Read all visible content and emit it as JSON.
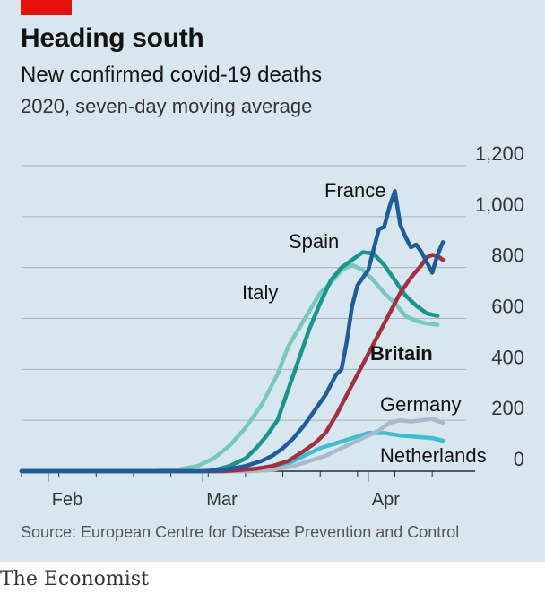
{
  "brand": "The Economist",
  "colors": {
    "panel": "#d7e6ef",
    "brand_red": "#e3120b",
    "France": "#1f5c99",
    "Spain": "#1b9490",
    "Italy": "#76c8c1",
    "Britain": "#a4303f",
    "Germany": "#a9b9c9",
    "Netherlands": "#3fbdd0",
    "grid": "#a9b3bb"
  },
  "chart_data": {
    "type": "line",
    "title": "Heading south",
    "subtitle": "New confirmed covid-19 deaths",
    "subsubtitle": "2020, seven-day moving average",
    "source": "Source: European Centre for Disease Prevention and Control",
    "ylim": [
      0,
      1200
    ],
    "yticks": [
      0,
      200,
      400,
      600,
      800,
      1000,
      1200
    ],
    "ytick_labels": [
      "0",
      "200",
      "400",
      "600",
      "800",
      "1,000",
      "1,200"
    ],
    "y_axis_position": "right",
    "grid": true,
    "xlim": [
      "2020-01-27",
      "2020-04-16"
    ],
    "xticks": [
      {
        "date": "2020-02-01",
        "label": "Feb"
      },
      {
        "date": "2020-03-01",
        "label": "Mar"
      },
      {
        "date": "2020-04-01",
        "label": "Apr"
      }
    ],
    "series": [
      {
        "name": "Italy",
        "label_emphasis": false,
        "points": [
          [
            "2020-01-27",
            0
          ],
          [
            "2020-02-20",
            0
          ],
          [
            "2020-02-25",
            5
          ],
          [
            "2020-02-29",
            20
          ],
          [
            "2020-03-03",
            50
          ],
          [
            "2020-03-06",
            100
          ],
          [
            "2020-03-09",
            170
          ],
          [
            "2020-03-12",
            260
          ],
          [
            "2020-03-15",
            380
          ],
          [
            "2020-03-17",
            490
          ],
          [
            "2020-03-19",
            560
          ],
          [
            "2020-03-21",
            630
          ],
          [
            "2020-03-23",
            700
          ],
          [
            "2020-03-25",
            740
          ],
          [
            "2020-03-27",
            790
          ],
          [
            "2020-03-29",
            810
          ],
          [
            "2020-03-31",
            790
          ],
          [
            "2020-04-02",
            750
          ],
          [
            "2020-04-04",
            700
          ],
          [
            "2020-04-06",
            660
          ],
          [
            "2020-04-08",
            610
          ],
          [
            "2020-04-10",
            590
          ],
          [
            "2020-04-12",
            580
          ],
          [
            "2020-04-14",
            575
          ]
        ]
      },
      {
        "name": "Spain",
        "label_emphasis": false,
        "points": [
          [
            "2020-01-27",
            0
          ],
          [
            "2020-03-01",
            0
          ],
          [
            "2020-03-03",
            3
          ],
          [
            "2020-03-06",
            20
          ],
          [
            "2020-03-09",
            50
          ],
          [
            "2020-03-11",
            90
          ],
          [
            "2020-03-13",
            140
          ],
          [
            "2020-03-15",
            200
          ],
          [
            "2020-03-17",
            320
          ],
          [
            "2020-03-19",
            440
          ],
          [
            "2020-03-21",
            560
          ],
          [
            "2020-03-23",
            660
          ],
          [
            "2020-03-25",
            750
          ],
          [
            "2020-03-27",
            800
          ],
          [
            "2020-03-29",
            830
          ],
          [
            "2020-03-31",
            860
          ],
          [
            "2020-04-02",
            855
          ],
          [
            "2020-04-04",
            810
          ],
          [
            "2020-04-06",
            750
          ],
          [
            "2020-04-08",
            690
          ],
          [
            "2020-04-10",
            650
          ],
          [
            "2020-04-12",
            620
          ],
          [
            "2020-04-14",
            610
          ]
        ]
      },
      {
        "name": "France",
        "label_emphasis": false,
        "points": [
          [
            "2020-01-27",
            0
          ],
          [
            "2020-03-01",
            0
          ],
          [
            "2020-03-05",
            5
          ],
          [
            "2020-03-09",
            20
          ],
          [
            "2020-03-12",
            40
          ],
          [
            "2020-03-14",
            60
          ],
          [
            "2020-03-16",
            90
          ],
          [
            "2020-03-18",
            130
          ],
          [
            "2020-03-20",
            180
          ],
          [
            "2020-03-22",
            240
          ],
          [
            "2020-03-24",
            300
          ],
          [
            "2020-03-26",
            380
          ],
          [
            "2020-03-27",
            400
          ],
          [
            "2020-03-28",
            510
          ],
          [
            "2020-03-29",
            650
          ],
          [
            "2020-03-30",
            730
          ],
          [
            "2020-04-01",
            790
          ],
          [
            "2020-04-02",
            870
          ],
          [
            "2020-04-03",
            950
          ],
          [
            "2020-04-04",
            960
          ],
          [
            "2020-04-05",
            1040
          ],
          [
            "2020-04-06",
            1100
          ],
          [
            "2020-04-07",
            970
          ],
          [
            "2020-04-08",
            920
          ],
          [
            "2020-04-09",
            880
          ],
          [
            "2020-04-10",
            890
          ],
          [
            "2020-04-11",
            860
          ],
          [
            "2020-04-12",
            820
          ],
          [
            "2020-04-13",
            780
          ],
          [
            "2020-04-14",
            850
          ],
          [
            "2020-04-15",
            900
          ]
        ]
      },
      {
        "name": "Britain",
        "label_emphasis": true,
        "points": [
          [
            "2020-01-27",
            0
          ],
          [
            "2020-03-05",
            0
          ],
          [
            "2020-03-08",
            5
          ],
          [
            "2020-03-11",
            10
          ],
          [
            "2020-03-14",
            20
          ],
          [
            "2020-03-17",
            40
          ],
          [
            "2020-03-20",
            80
          ],
          [
            "2020-03-22",
            110
          ],
          [
            "2020-03-24",
            150
          ],
          [
            "2020-03-26",
            220
          ],
          [
            "2020-03-28",
            300
          ],
          [
            "2020-03-30",
            380
          ],
          [
            "2020-04-01",
            460
          ],
          [
            "2020-04-03",
            540
          ],
          [
            "2020-04-05",
            620
          ],
          [
            "2020-04-07",
            700
          ],
          [
            "2020-04-09",
            760
          ],
          [
            "2020-04-11",
            810
          ],
          [
            "2020-04-12",
            840
          ],
          [
            "2020-04-13",
            850
          ],
          [
            "2020-04-14",
            845
          ],
          [
            "2020-04-15",
            830
          ]
        ]
      },
      {
        "name": "Germany",
        "label_emphasis": false,
        "points": [
          [
            "2020-01-27",
            0
          ],
          [
            "2020-03-10",
            0
          ],
          [
            "2020-03-14",
            5
          ],
          [
            "2020-03-18",
            20
          ],
          [
            "2020-03-21",
            40
          ],
          [
            "2020-03-24",
            60
          ],
          [
            "2020-03-27",
            90
          ],
          [
            "2020-03-30",
            120
          ],
          [
            "2020-04-01",
            140
          ],
          [
            "2020-04-03",
            160
          ],
          [
            "2020-04-05",
            190
          ],
          [
            "2020-04-07",
            200
          ],
          [
            "2020-04-09",
            195
          ],
          [
            "2020-04-11",
            200
          ],
          [
            "2020-04-13",
            205
          ],
          [
            "2020-04-15",
            190
          ]
        ]
      },
      {
        "name": "Netherlands",
        "label_emphasis": false,
        "points": [
          [
            "2020-01-27",
            0
          ],
          [
            "2020-03-08",
            0
          ],
          [
            "2020-03-11",
            5
          ],
          [
            "2020-03-14",
            15
          ],
          [
            "2020-03-17",
            30
          ],
          [
            "2020-03-20",
            60
          ],
          [
            "2020-03-23",
            90
          ],
          [
            "2020-03-26",
            110
          ],
          [
            "2020-03-29",
            130
          ],
          [
            "2020-04-01",
            150
          ],
          [
            "2020-04-04",
            150
          ],
          [
            "2020-04-07",
            140
          ],
          [
            "2020-04-10",
            135
          ],
          [
            "2020-04-13",
            130
          ],
          [
            "2020-04-15",
            120
          ]
        ]
      }
    ]
  }
}
